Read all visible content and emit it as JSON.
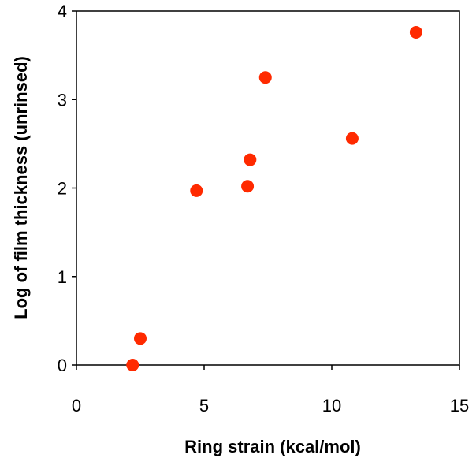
{
  "chart_data": {
    "type": "scatter",
    "title": "",
    "xlabel": "Ring strain (kcal/mol)",
    "ylabel": "Log of film thickness (unrinsed)",
    "xlim": [
      0,
      15
    ],
    "ylim": [
      0,
      4
    ],
    "xticks": [
      0,
      5,
      10,
      15
    ],
    "yticks": [
      0,
      1,
      2,
      3,
      4
    ],
    "grid": false,
    "legend": "none",
    "marker_color": "#ff2a00",
    "series": [
      {
        "x": [
          2.2,
          2.5,
          4.7,
          6.7,
          6.8,
          7.4,
          10.8,
          13.3
        ],
        "y": [
          0.0,
          0.3,
          1.97,
          2.02,
          2.32,
          3.25,
          2.56,
          3.76
        ]
      }
    ]
  }
}
